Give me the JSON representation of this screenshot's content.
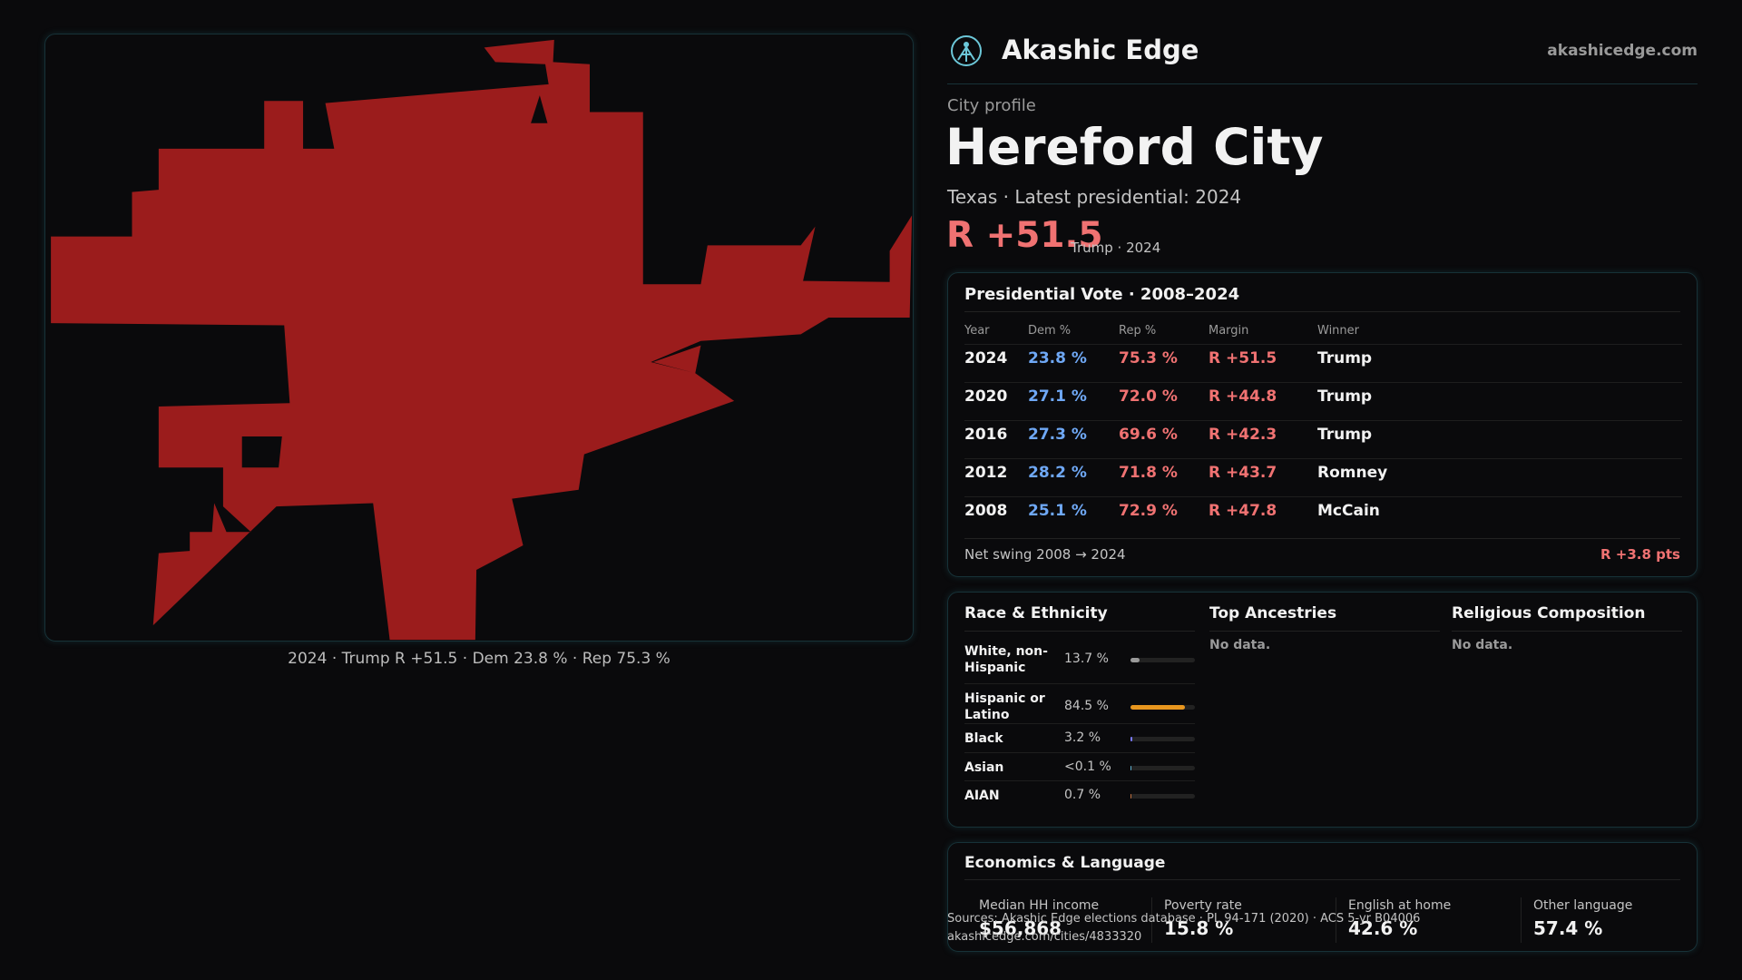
{
  "header": {
    "brand": "Akashic Edge",
    "site": "akashicedge.com"
  },
  "map": {
    "caption": "2024 · Trump R +51.5 · Dem 23.8 % · Rep 75.3 %"
  },
  "profile": {
    "kicker": "City profile",
    "name": "Hereford City",
    "subtitle": "Texas · Latest presidential: 2024",
    "margin": "R +51.5",
    "margin_note": "Trump · 2024"
  },
  "vote_table": {
    "title": "Presidential Vote · 2008–2024",
    "columns": [
      "Year",
      "Dem %",
      "Rep %",
      "Margin",
      "Winner"
    ],
    "rows": [
      [
        "2024",
        "23.8 %",
        "75.3 %",
        "R +51.5",
        "Trump"
      ],
      [
        "2020",
        "27.1 %",
        "72.0 %",
        "R +44.8",
        "Trump"
      ],
      [
        "2016",
        "27.3 %",
        "69.6 %",
        "R +42.3",
        "Trump"
      ],
      [
        "2012",
        "28.2 %",
        "71.8 %",
        "R +43.7",
        "Romney"
      ],
      [
        "2008",
        "25.1 %",
        "72.9 %",
        "R +47.8",
        "McCain"
      ]
    ],
    "swing_label": "Net swing 2008 → 2024",
    "swing_value": "R +3.8 pts"
  },
  "race": {
    "title": "Race & Ethnicity",
    "rows": [
      {
        "label": "White, non-Hispanic",
        "value": 13.7,
        "value_label": "13.7 %",
        "color": "#9a9a9a"
      },
      {
        "label": "Hispanic or Latino",
        "value": 84.5,
        "value_label": "84.5 %",
        "color": "#e8961e"
      },
      {
        "label": "Black",
        "value": 3.2,
        "value_label": "3.2 %",
        "color": "#7b7bff"
      },
      {
        "label": "Asian",
        "value": 0,
        "value_label": "<0.1 %",
        "color": "#5fb0d0"
      },
      {
        "label": "AIAN",
        "value": 0.7,
        "value_label": "0.7 %",
        "color": "#c07040"
      }
    ]
  },
  "ancestries": {
    "title": "Top Ancestries",
    "empty": "No data."
  },
  "religion": {
    "title": "Religious Composition",
    "empty": "No data."
  },
  "economics": {
    "title": "Economics & Language",
    "stats": [
      {
        "label": "Median HH income",
        "value": "$56,868"
      },
      {
        "label": "Poverty rate",
        "value": "15.8 %"
      },
      {
        "label": "English at home",
        "value": "42.6 %"
      },
      {
        "label": "Other language",
        "value": "57.4 %"
      }
    ]
  },
  "source": {
    "line1": "Sources: Akashic Edge elections database · PL 94-171 (2020) · ACS 5-yr B04006",
    "line2": "akashicedge.com/cities/4833320"
  }
}
